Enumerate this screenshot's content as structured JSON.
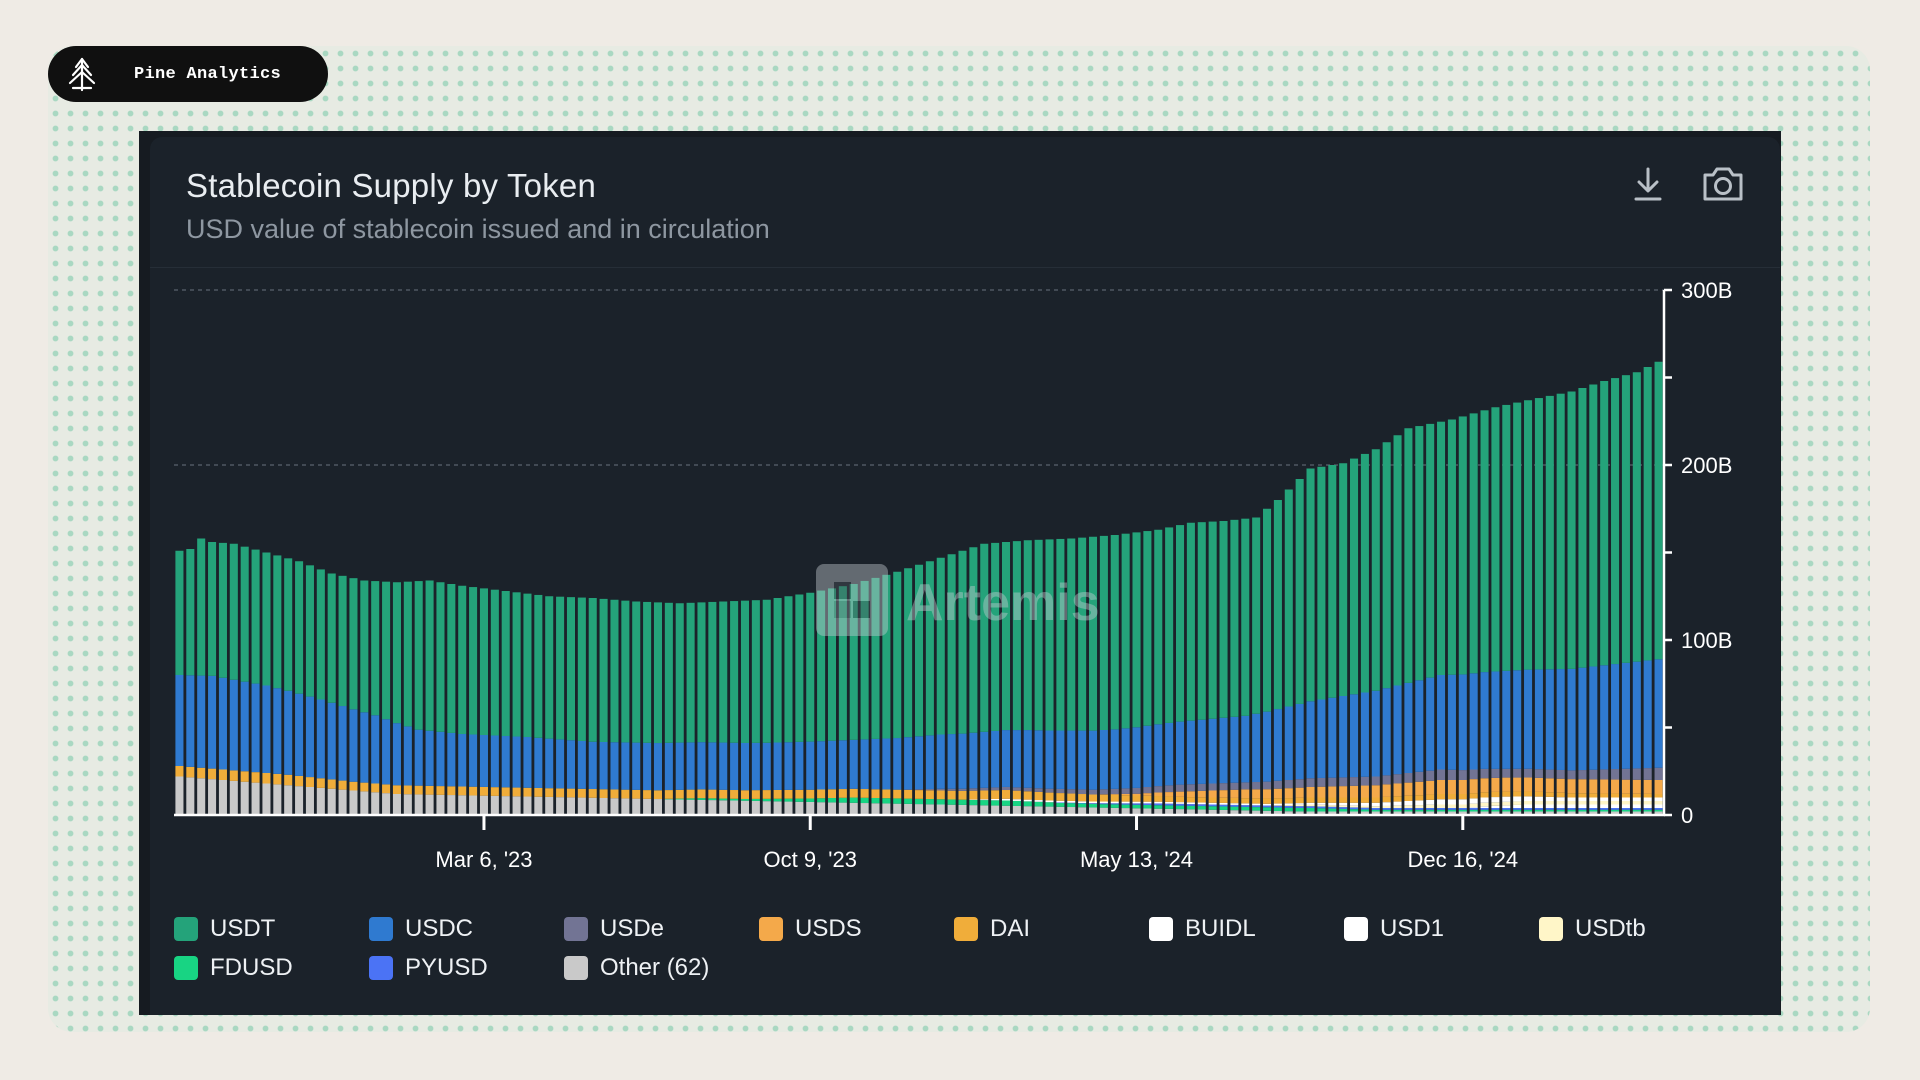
{
  "brand": {
    "name": "Pine Analytics",
    "logo_icon": "pine-tree-icon"
  },
  "card": {
    "title": "Stablecoin Supply by Token",
    "subtitle": "USD value of stablecoin issued and in circulation",
    "download_icon": "download-icon",
    "screenshot_icon": "camera-icon",
    "watermark": "Artemis"
  },
  "colors": {
    "page_bg": "#efebe5",
    "card_bg": "#1b222a",
    "USDT": "#24a37a",
    "USDC": "#2f7ad0",
    "USDe": "#727494",
    "USDS": "#f4a94a",
    "DAI": "#f0ad3a",
    "BUIDL": "#ffffff",
    "USD1": "#ffffff",
    "USDtb": "#fff6c8",
    "FDUSD": "#18d483",
    "PYUSD": "#4b73f5",
    "Other": "#c9c9c9"
  },
  "chart_data": {
    "type": "bar",
    "stacked": true,
    "title": "Stablecoin Supply by Token",
    "subtitle": "USD value of stablecoin issued and in circulation",
    "x_tick_labels": [
      "Mar 6, '23",
      "Oct 9, '23",
      "May 13, '24",
      "Dec 16, '24"
    ],
    "y_tick_labels": [
      "0",
      "100B",
      "200B",
      "300B"
    ],
    "ylim": [
      0,
      300
    ],
    "y_unit": "B USD",
    "grid": "dashed horizontal at 200B and 300B",
    "legend_position": "bottom",
    "x_period": "weekly, Aug 2022 – Aug 2025 (approx.)",
    "legend": [
      "USDT",
      "USDC",
      "USDe",
      "USDS",
      "DAI",
      "BUIDL",
      "USD1",
      "USDtb",
      "FDUSD",
      "PYUSD",
      "Other (62)"
    ],
    "total_keyframes": [
      [
        0,
        151
      ],
      [
        1,
        152
      ],
      [
        2,
        158
      ],
      [
        3,
        156
      ],
      [
        5,
        155
      ],
      [
        8,
        150
      ],
      [
        11,
        145
      ],
      [
        14,
        138
      ],
      [
        17,
        134
      ],
      [
        20,
        133
      ],
      [
        23,
        134
      ],
      [
        26,
        131
      ],
      [
        30,
        128
      ],
      [
        34,
        125
      ],
      [
        38,
        124
      ],
      [
        42,
        122
      ],
      [
        46,
        121
      ],
      [
        50,
        122
      ],
      [
        54,
        123
      ],
      [
        58,
        127
      ],
      [
        62,
        132
      ],
      [
        66,
        139
      ],
      [
        70,
        147
      ],
      [
        74,
        155
      ],
      [
        78,
        157
      ],
      [
        82,
        158
      ],
      [
        86,
        160
      ],
      [
        90,
        163
      ],
      [
        93,
        167
      ],
      [
        96,
        168
      ],
      [
        99,
        170
      ],
      [
        101,
        180
      ],
      [
        104,
        198
      ],
      [
        107,
        201
      ],
      [
        110,
        209
      ],
      [
        113,
        221
      ],
      [
        117,
        226
      ],
      [
        121,
        233
      ],
      [
        124,
        237
      ],
      [
        128,
        242
      ],
      [
        131,
        248
      ],
      [
        134,
        253
      ],
      [
        136,
        259
      ]
    ],
    "series": [
      {
        "name": "USDT",
        "keyframes": [
          [
            0,
            68
          ],
          [
            3,
            70
          ],
          [
            10,
            67
          ],
          [
            16,
            67
          ],
          [
            20,
            70
          ],
          [
            28,
            79
          ],
          [
            36,
            83
          ],
          [
            42,
            84
          ],
          [
            50,
            86
          ],
          [
            58,
            88
          ],
          [
            66,
            96
          ],
          [
            76,
            109
          ],
          [
            84,
            111
          ],
          [
            92,
            113
          ],
          [
            98,
            115
          ],
          [
            104,
            126
          ],
          [
            110,
            130
          ],
          [
            116,
            133
          ],
          [
            122,
            136
          ],
          [
            128,
            144
          ],
          [
            136,
            153
          ]
        ]
      },
      {
        "name": "USDC",
        "keyframes": [
          [
            0,
            52
          ],
          [
            3,
            53
          ],
          [
            8,
            50
          ],
          [
            13,
            45
          ],
          [
            18,
            39
          ],
          [
            22,
            32
          ],
          [
            26,
            30
          ],
          [
            32,
            29
          ],
          [
            38,
            27
          ],
          [
            46,
            27
          ],
          [
            54,
            27
          ],
          [
            62,
            28
          ],
          [
            70,
            31
          ],
          [
            78,
            33
          ],
          [
            86,
            34
          ],
          [
            92,
            36
          ],
          [
            98,
            38
          ],
          [
            104,
            44
          ],
          [
            110,
            49
          ],
          [
            116,
            54
          ],
          [
            122,
            56
          ],
          [
            128,
            58
          ],
          [
            136,
            62
          ]
        ]
      },
      {
        "name": "USDe",
        "keyframes": [
          [
            0,
            0
          ],
          [
            66,
            0
          ],
          [
            70,
            1
          ],
          [
            78,
            2
          ],
          [
            86,
            3
          ],
          [
            92,
            4
          ],
          [
            98,
            4
          ],
          [
            104,
            5
          ],
          [
            110,
            5
          ],
          [
            116,
            6
          ],
          [
            122,
            5
          ],
          [
            128,
            5
          ],
          [
            136,
            7
          ]
        ]
      },
      {
        "name": "USDS",
        "keyframes": [
          [
            0,
            0
          ],
          [
            84,
            0
          ],
          [
            88,
            1
          ],
          [
            92,
            3
          ],
          [
            98,
            5
          ],
          [
            104,
            6
          ],
          [
            110,
            7
          ],
          [
            116,
            8
          ],
          [
            122,
            8
          ],
          [
            128,
            8
          ],
          [
            136,
            8
          ]
        ]
      },
      {
        "name": "DAI",
        "keyframes": [
          [
            0,
            6
          ],
          [
            5,
            6
          ],
          [
            10,
            6
          ],
          [
            16,
            5
          ],
          [
            22,
            5
          ],
          [
            28,
            5
          ],
          [
            36,
            5
          ],
          [
            44,
            5
          ],
          [
            52,
            5
          ],
          [
            60,
            5
          ],
          [
            68,
            5
          ],
          [
            76,
            5
          ],
          [
            84,
            4
          ],
          [
            92,
            3
          ],
          [
            100,
            3
          ],
          [
            110,
            3
          ],
          [
            120,
            3
          ],
          [
            136,
            2
          ]
        ]
      },
      {
        "name": "BUIDL",
        "keyframes": [
          [
            0,
            0
          ],
          [
            72,
            0
          ],
          [
            76,
            1
          ],
          [
            84,
            1
          ],
          [
            92,
            1
          ],
          [
            98,
            1
          ],
          [
            104,
            1
          ],
          [
            110,
            2
          ],
          [
            116,
            3
          ],
          [
            122,
            3
          ],
          [
            128,
            2
          ],
          [
            136,
            2
          ]
        ]
      },
      {
        "name": "USD1",
        "keyframes": [
          [
            0,
            0
          ],
          [
            118,
            0
          ],
          [
            120,
            1
          ],
          [
            124,
            2
          ],
          [
            128,
            2
          ],
          [
            136,
            2
          ]
        ]
      },
      {
        "name": "USDtb",
        "keyframes": [
          [
            0,
            0
          ],
          [
            100,
            0
          ],
          [
            104,
            1
          ],
          [
            110,
            1
          ],
          [
            116,
            2
          ],
          [
            122,
            2
          ],
          [
            128,
            2
          ],
          [
            136,
            2
          ]
        ]
      },
      {
        "name": "FDUSD",
        "keyframes": [
          [
            0,
            0
          ],
          [
            44,
            0
          ],
          [
            48,
            1
          ],
          [
            52,
            1
          ],
          [
            58,
            2
          ],
          [
            62,
            3
          ],
          [
            66,
            3
          ],
          [
            70,
            3
          ],
          [
            76,
            3
          ],
          [
            84,
            2
          ],
          [
            92,
            2
          ],
          [
            98,
            2
          ],
          [
            104,
            2
          ],
          [
            110,
            1
          ],
          [
            120,
            1
          ],
          [
            136,
            1
          ]
        ]
      },
      {
        "name": "PYUSD",
        "keyframes": [
          [
            0,
            0
          ],
          [
            50,
            0
          ],
          [
            56,
            0
          ],
          [
            70,
            0
          ],
          [
            80,
            0
          ],
          [
            90,
            1
          ],
          [
            100,
            1
          ],
          [
            110,
            1
          ],
          [
            120,
            1
          ],
          [
            136,
            1
          ]
        ]
      }
    ]
  }
}
